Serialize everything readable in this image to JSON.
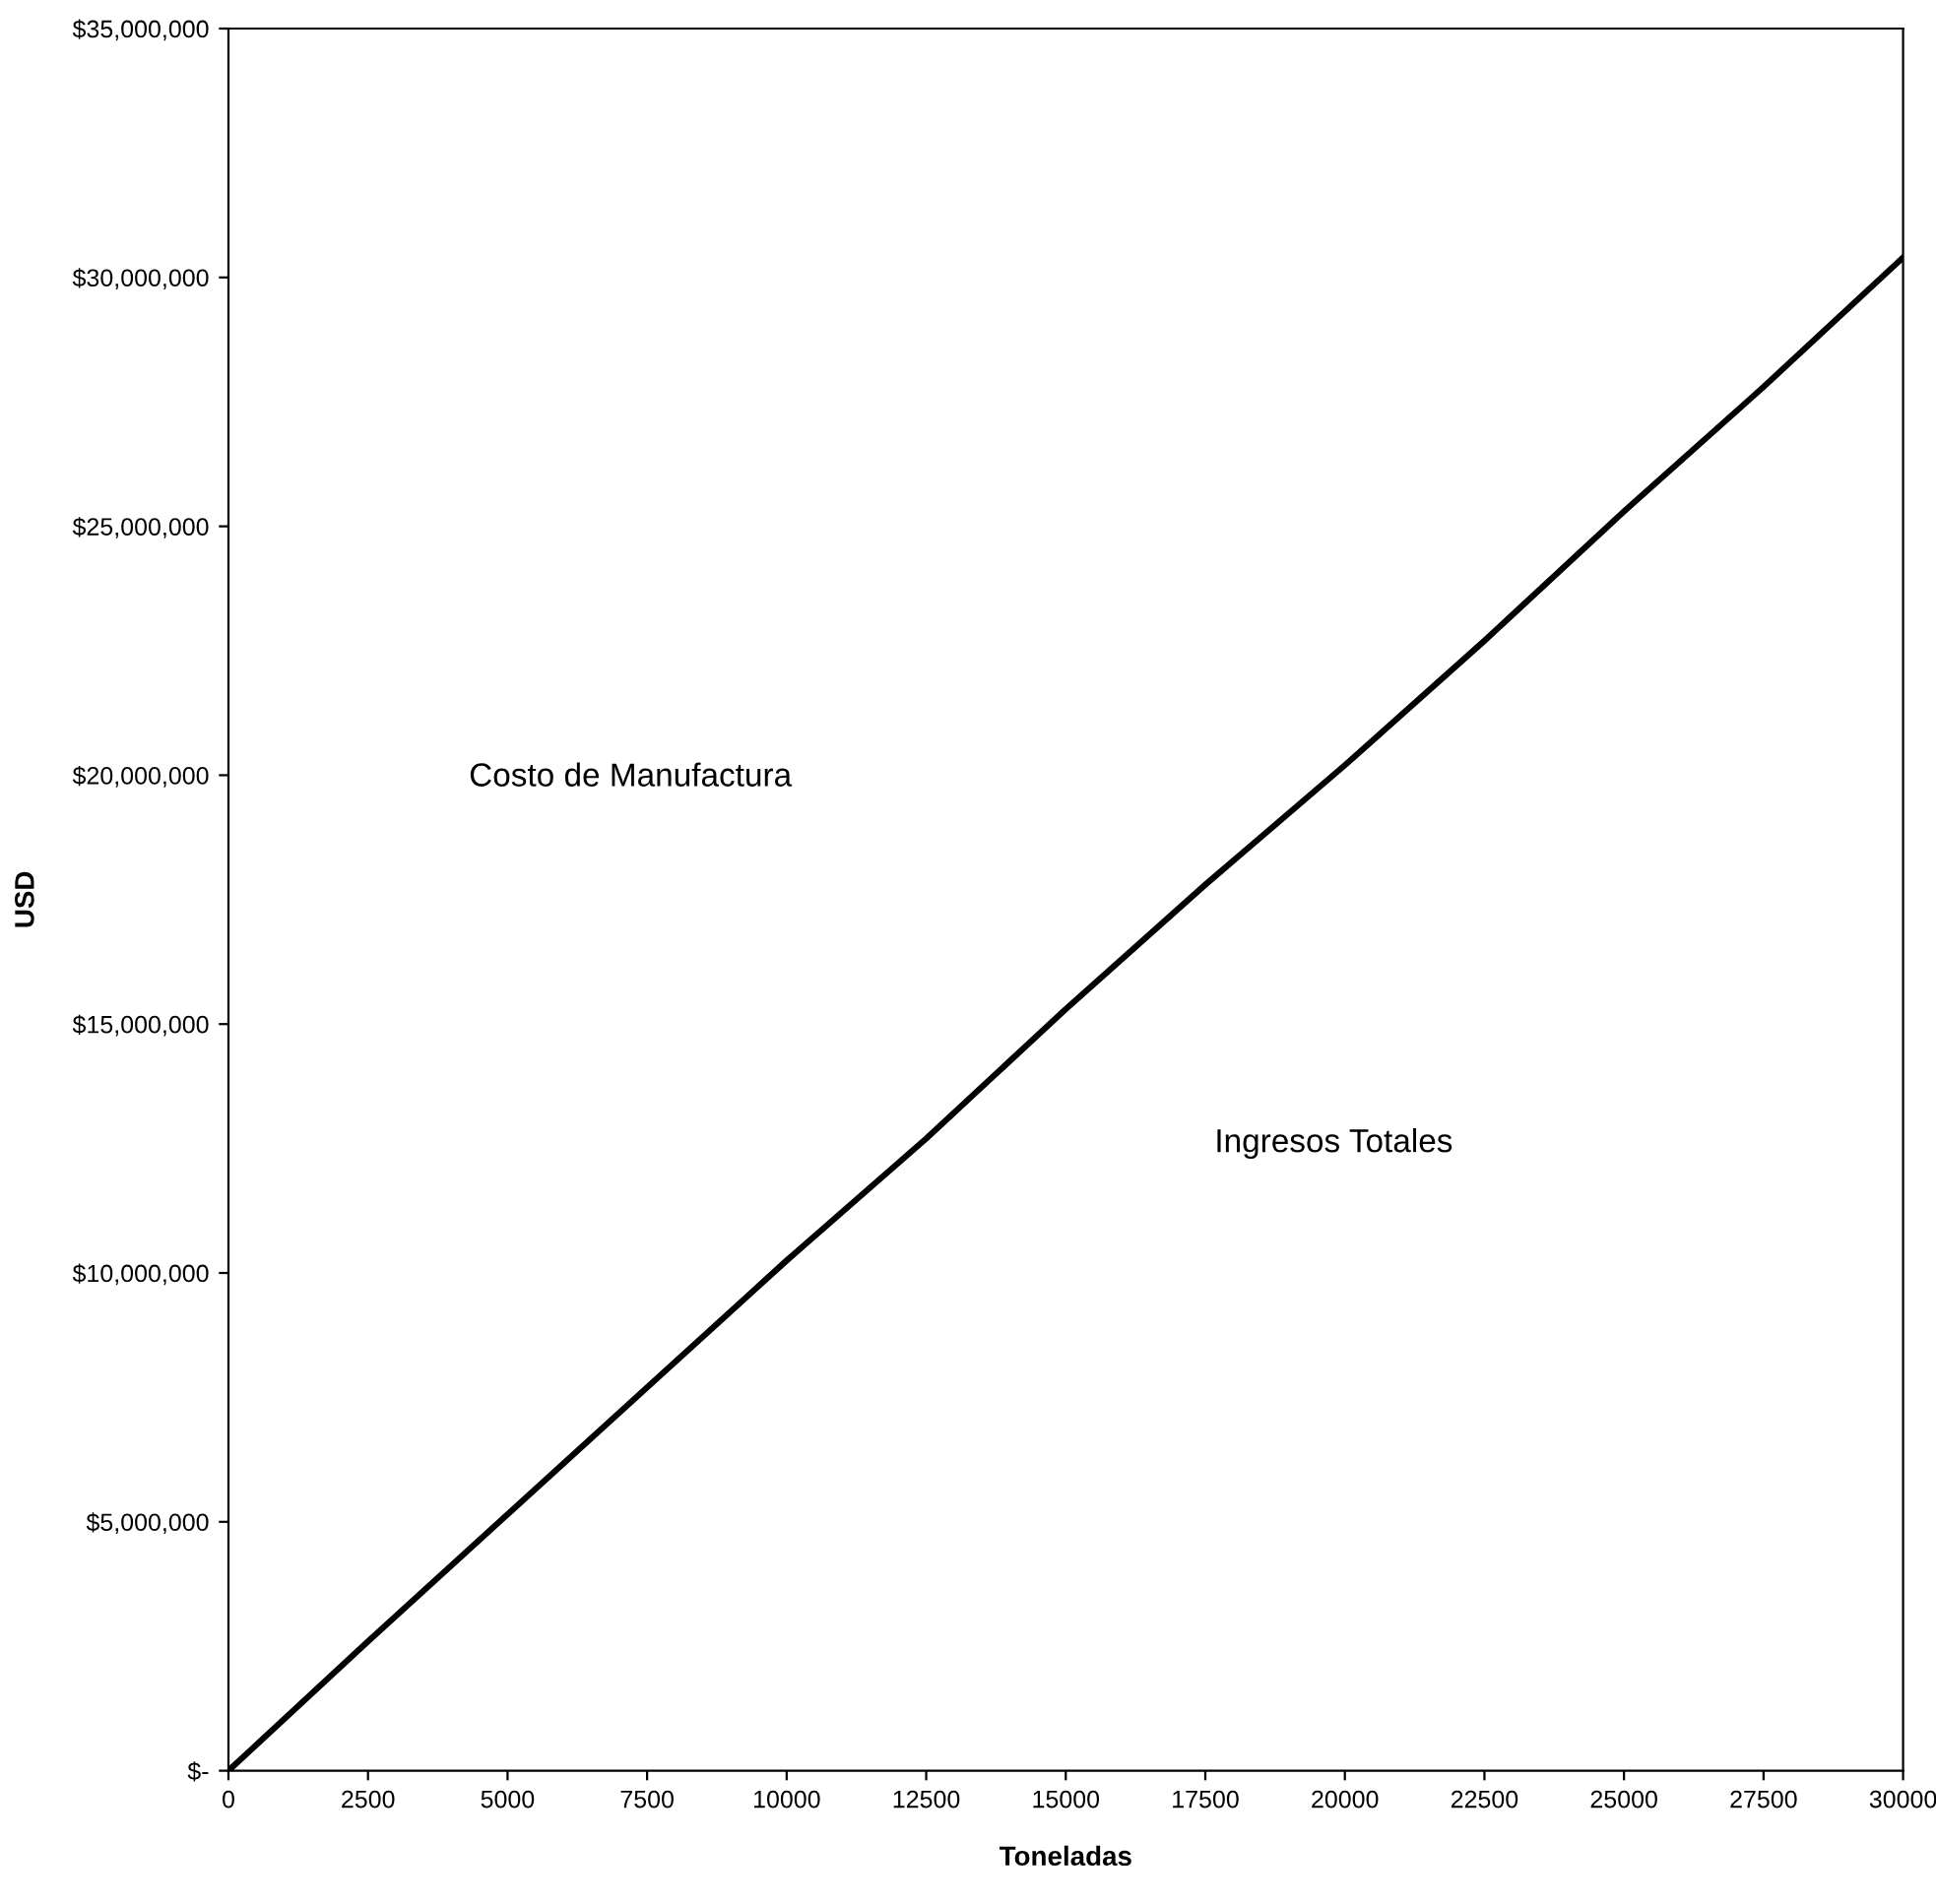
{
  "chart_data": {
    "type": "line",
    "xlabel": "Toneladas",
    "ylabel": "USD",
    "x": [
      0,
      2500,
      5000,
      7500,
      10000,
      12500,
      15000,
      17500,
      20000,
      22500,
      25000,
      27500,
      30000
    ],
    "series": [
      {
        "color": "#000000",
        "values": [
          0,
          2600000,
          5150000,
          7700000,
          10250000,
          12700000,
          15300000,
          17800000,
          20200000,
          22700000,
          25300000,
          27800000,
          30400000
        ]
      }
    ],
    "xlim": [
      0,
      30000
    ],
    "xticks": [
      0,
      2500,
      5000,
      7500,
      10000,
      12500,
      15000,
      17500,
      20000,
      22500,
      25000,
      27500,
      30000
    ],
    "ylim": [
      0,
      35000000
    ],
    "yticks": [
      {
        "value": 0,
        "label": "$-"
      },
      {
        "value": 5000000,
        "label": "$5,000,000"
      },
      {
        "value": 10000000,
        "label": "$10,000,000"
      },
      {
        "value": 15000000,
        "label": "$15,000,000"
      },
      {
        "value": 20000000,
        "label": "$20,000,000"
      },
      {
        "value": 25000000,
        "label": "$25,000,000"
      },
      {
        "value": 30000000,
        "label": "$30,000,000"
      },
      {
        "value": 35000000,
        "label": "$35,000,000"
      }
    ],
    "annotations": [
      "Costo de Manufactura",
      "Ingresos Totales"
    ],
    "grid": false,
    "legend": false,
    "marker": "none",
    "line_style": "solid"
  }
}
